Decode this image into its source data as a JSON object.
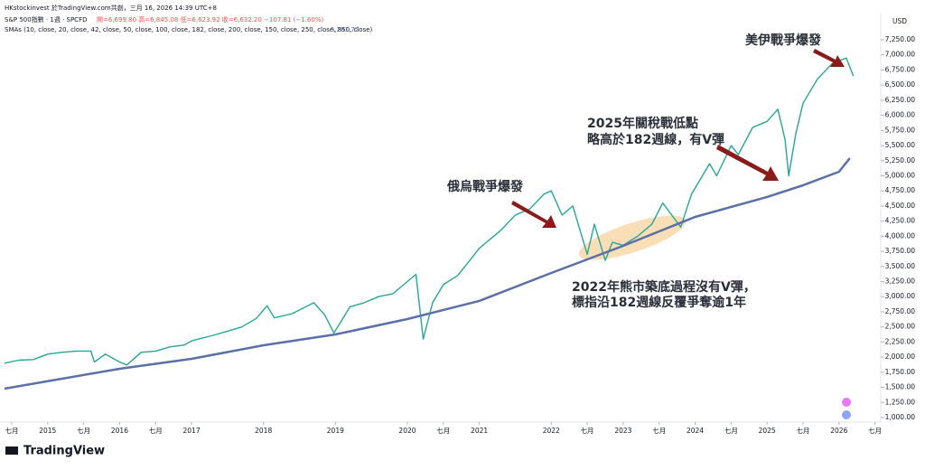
{
  "chart_data": {
    "type": "line",
    "credit": "HKstockinvest 於TradingView.com共創，三月 16, 2026 14:39 UTC+8",
    "ohlc_text": "開=6,699.80 高=6,845.08 低=6,623.92 收=6,632.20 −107.81 (−1.60%)",
    "sma_value_label": "5,281.72",
    "currency": "USD",
    "brand": "TradingView",
    "annotations": [
      "美伊戰爭爆發",
      "2025年關稅戰低點",
      "略高於182週線，有V彈",
      "俄烏戰爭爆發",
      "2022年熊市築底過程沒有V彈，",
      "標指沿182週線反覆爭奪逾1年"
    ],
    "series": [
      {
        "name": "S&P 500指數 · 1週 · SPCFD",
        "color": "#26a69a",
        "x": [
          2014.4,
          2014.6,
          2014.8,
          2015.0,
          2015.2,
          2015.4,
          2015.6,
          2015.65,
          2015.8,
          2016.0,
          2016.1,
          2016.3,
          2016.5,
          2016.7,
          2016.9,
          2017.0,
          2017.3,
          2017.5,
          2017.7,
          2017.9,
          2018.05,
          2018.15,
          2018.4,
          2018.7,
          2018.85,
          2018.98,
          2019.2,
          2019.4,
          2019.6,
          2019.8,
          2020.0,
          2020.12,
          2020.22,
          2020.35,
          2020.5,
          2020.7,
          2020.9,
          2021.0,
          2021.3,
          2021.5,
          2021.7,
          2021.9,
          2022.0,
          2022.15,
          2022.3,
          2022.45,
          2022.5,
          2022.6,
          2022.75,
          2022.85,
          2023.0,
          2023.2,
          2023.4,
          2023.55,
          2023.8,
          2023.95,
          2024.2,
          2024.3,
          2024.5,
          2024.6,
          2024.8,
          2025.0,
          2025.15,
          2025.25,
          2025.3,
          2025.4,
          2025.5,
          2025.7,
          2025.9,
          2026.0,
          2026.1,
          2026.2
        ],
        "values": [
          1900,
          1950,
          1960,
          2050,
          2080,
          2100,
          2100,
          1920,
          2050,
          1920,
          1870,
          2080,
          2100,
          2170,
          2200,
          2270,
          2360,
          2430,
          2500,
          2640,
          2850,
          2650,
          2720,
          2900,
          2700,
          2400,
          2830,
          2900,
          3000,
          3050,
          3250,
          3370,
          2300,
          2900,
          3200,
          3350,
          3650,
          3800,
          4100,
          4350,
          4450,
          4700,
          4750,
          4350,
          4500,
          3900,
          3700,
          4200,
          3600,
          3900,
          3850,
          4000,
          4200,
          4550,
          4150,
          4700,
          5200,
          5000,
          5500,
          5350,
          5800,
          5900,
          6100,
          5600,
          5000,
          5700,
          6200,
          6600,
          6850,
          6900,
          6950,
          6650
        ]
      },
      {
        "name": "SMAs (10, close, 20, close, 42, close, 50, close, 100, close, 182, close, 200, close, 150, close, 250, close, 850, close)",
        "color": "#5b6fa8",
        "x": [
          2014.4,
          2016.0,
          2017.0,
          2018.0,
          2019.0,
          2020.0,
          2021.0,
          2022.0,
          2023.0,
          2024.0,
          2025.0,
          2025.5,
          2026.0,
          2026.15
        ],
        "values": [
          1478,
          1807,
          1972,
          2196,
          2376,
          2630,
          2930,
          3392,
          3841,
          4320,
          4650,
          4843,
          5067,
          5291
        ]
      }
    ],
    "xlim": [
      2014.4,
      2026.58
    ],
    "xticks": [
      {
        "value": 2014.5,
        "label": "七月"
      },
      2015,
      {
        "value": 2015.5,
        "label": "七月"
      },
      2016,
      {
        "value": 2016.5,
        "label": "七月"
      },
      2017,
      2018,
      2019,
      2020,
      {
        "value": 2020.5,
        "label": "七月"
      },
      2021,
      2022,
      {
        "value": 2022.5,
        "label": "七月"
      },
      2023,
      {
        "value": 2023.5,
        "label": "七月"
      },
      2024,
      {
        "value": 2024.5,
        "label": "七月"
      },
      2025,
      {
        "value": 2025.5,
        "label": "七月"
      },
      2026,
      {
        "value": 2026.5,
        "label": "七月"
      }
    ],
    "ylim": [
      656,
      7684
    ],
    "yticks": [
      {
        "value": 1000,
        "label": "1,000.00"
      },
      {
        "value": 1250,
        "label": "1,250.00"
      },
      {
        "value": 1500,
        "label": "1,500.00"
      },
      {
        "value": 1750,
        "label": "1,750.00"
      },
      {
        "value": 2000,
        "label": "2,000.00"
      },
      {
        "value": 2250,
        "label": "2,250.00"
      },
      {
        "value": 2500,
        "label": "2,500.00"
      },
      {
        "value": 2750,
        "label": "2,750.00"
      },
      {
        "value": 3000,
        "label": "3,000.00"
      },
      {
        "value": 3250,
        "label": "3,250.00"
      },
      {
        "value": 3500,
        "label": "3,500.00"
      },
      {
        "value": 3750,
        "label": "3,750.00"
      },
      {
        "value": 4000,
        "label": "4,000.00"
      },
      {
        "value": 4250,
        "label": "4,250.00"
      },
      {
        "value": 4500,
        "label": "4,500.00"
      },
      {
        "value": 4750,
        "label": "4,750.00"
      },
      {
        "value": 5000,
        "label": "5,000.00"
      },
      {
        "value": 5250,
        "label": "5,250.00"
      },
      {
        "value": 5500,
        "label": "5,500.00"
      },
      {
        "value": 5750,
        "label": "5,750.00"
      },
      {
        "value": 6000,
        "label": "6,000.00"
      },
      {
        "value": 6250,
        "label": "6,250.00"
      },
      {
        "value": 6500,
        "label": "6,500.00"
      },
      {
        "value": 6750,
        "label": "6,750.00"
      },
      {
        "value": 7000,
        "label": "7,000.00"
      },
      {
        "value": 7250,
        "label": "7,250.00"
      }
    ],
    "grid": false
  }
}
